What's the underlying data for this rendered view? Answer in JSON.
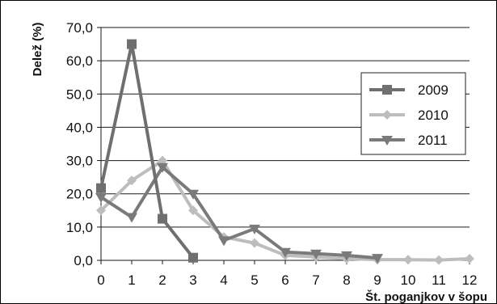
{
  "chart_data": {
    "type": "line",
    "x": [
      0,
      1,
      2,
      3,
      4,
      5,
      6,
      7,
      8,
      9,
      10,
      11,
      12
    ],
    "xlabel": "Št. poganjkov v šopu",
    "ylabel": "Delež (%)",
    "ylim": [
      0,
      70
    ],
    "yticks": [
      0,
      10,
      20,
      30,
      40,
      50,
      60,
      70
    ],
    "ytick_labels": [
      "0,0",
      "10,0",
      "20,0",
      "30,0",
      "40,0",
      "50,0",
      "60,0",
      "70,0"
    ],
    "xtick_labels": [
      "0",
      "1",
      "2",
      "3",
      "4",
      "5",
      "6",
      "7",
      "8",
      "9",
      "10",
      "11",
      "12"
    ],
    "grid": true,
    "legend_position": "right",
    "series": [
      {
        "name": "2009",
        "color": "#6f6f6f",
        "marker": "square",
        "points": [
          [
            0,
            21.7
          ],
          [
            1,
            65.0
          ],
          [
            2,
            12.5
          ],
          [
            3,
            0.8
          ]
        ]
      },
      {
        "name": "2010",
        "color": "#bdbdbd",
        "marker": "diamond",
        "points": [
          [
            0,
            15.0
          ],
          [
            1,
            24.0
          ],
          [
            2,
            30.0
          ],
          [
            3,
            15.0
          ],
          [
            4,
            7.0
          ],
          [
            5,
            5.2
          ],
          [
            6,
            1.5
          ],
          [
            7,
            1.0
          ],
          [
            8,
            0.5
          ],
          [
            9,
            0.2
          ],
          [
            10,
            0.2
          ],
          [
            11,
            0.1
          ],
          [
            12,
            0.5
          ]
        ]
      },
      {
        "name": "2011",
        "color": "#7a7a7a",
        "marker": "triangle-down",
        "points": [
          [
            0,
            19.0
          ],
          [
            1,
            13.0
          ],
          [
            2,
            28.0
          ],
          [
            3,
            20.0
          ],
          [
            4,
            6.0
          ],
          [
            5,
            9.5
          ],
          [
            6,
            2.5
          ],
          [
            7,
            2.0
          ],
          [
            8,
            1.5
          ],
          [
            9,
            0.7
          ]
        ]
      }
    ]
  }
}
